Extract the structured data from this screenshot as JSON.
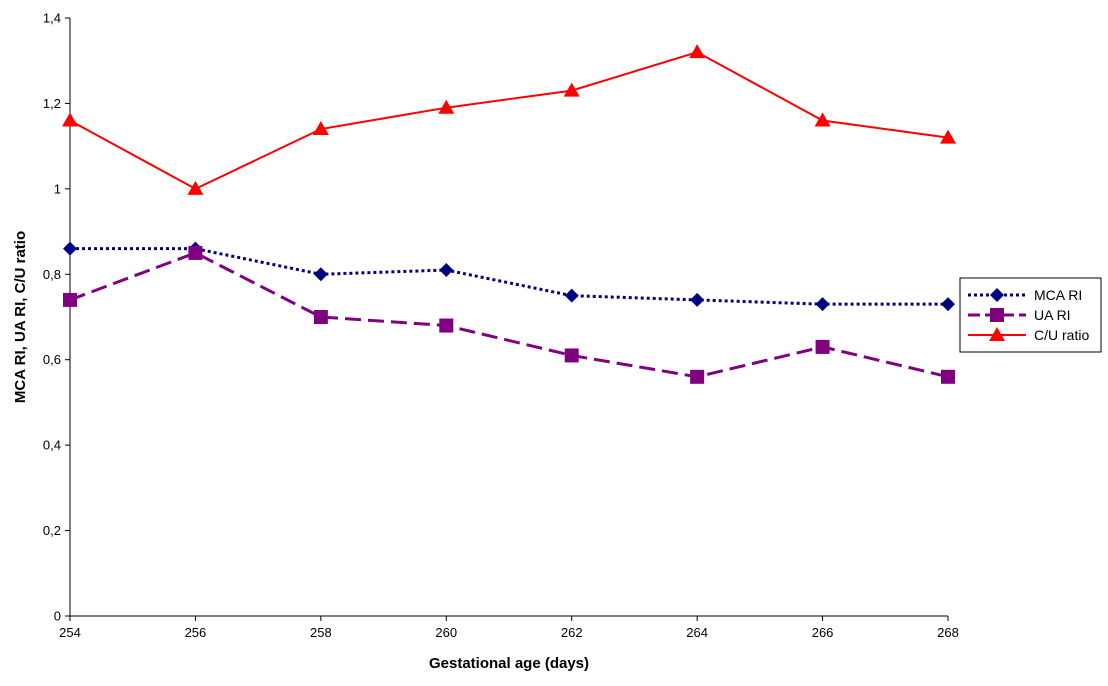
{
  "chart_data": {
    "type": "line",
    "title": "",
    "xlabel": "Gestational age (days)",
    "ylabel": "MCA RI, UA RI, C/U ratio",
    "x": [
      254,
      256,
      258,
      260,
      262,
      264,
      266,
      268
    ],
    "x_tick_labels": [
      "254",
      "256",
      "258",
      "260",
      "262",
      "264",
      "266",
      "268"
    ],
    "xlim": [
      254,
      268
    ],
    "ylim": [
      0,
      1.4
    ],
    "y_ticks": [
      0,
      0.2,
      0.4,
      0.6,
      0.8,
      1,
      1.2,
      1.4
    ],
    "y_tick_labels": [
      "0",
      "0,2",
      "0,4",
      "0,6",
      "0,8",
      "1",
      "1,2",
      "1,4"
    ],
    "grid": false,
    "legend_position": "right",
    "series": [
      {
        "name": "MCA RI",
        "values": [
          0.86,
          0.86,
          0.8,
          0.81,
          0.75,
          0.74,
          0.73,
          0.73
        ],
        "color": "#000080",
        "marker": "diamond",
        "line_style": "dotted"
      },
      {
        "name": "UA RI",
        "values": [
          0.74,
          0.85,
          0.7,
          0.68,
          0.61,
          0.56,
          0.63,
          0.56
        ],
        "color": "#800080",
        "marker": "square",
        "line_style": "dashed"
      },
      {
        "name": "C/U ratio",
        "values": [
          1.16,
          1.0,
          1.14,
          1.19,
          1.23,
          1.32,
          1.16,
          1.12
        ],
        "color": "#ff0000",
        "marker": "triangle",
        "line_style": "solid"
      }
    ]
  }
}
